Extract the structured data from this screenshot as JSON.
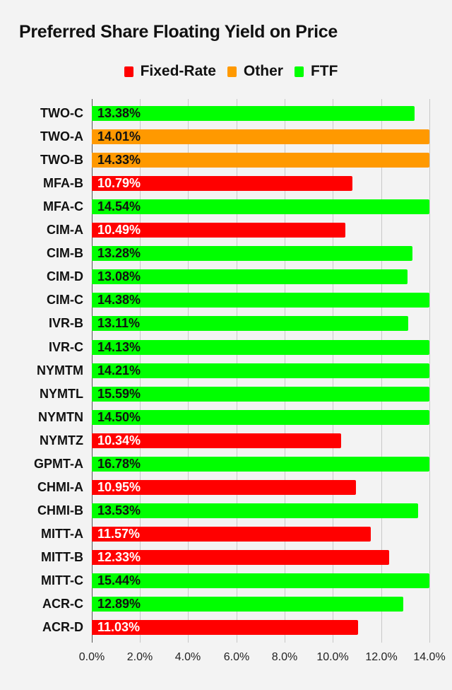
{
  "title": "Preferred Share Floating Yield on Price",
  "legend": [
    {
      "label": "Fixed-Rate",
      "color": "#ff0000"
    },
    {
      "label": "Other",
      "color": "#ff9900"
    },
    {
      "label": "FTF",
      "color": "#00ff00"
    }
  ],
  "x_axis": {
    "ticks": [
      "0.0%",
      "2.0%",
      "4.0%",
      "6.0%",
      "8.0%",
      "10.0%",
      "12.0%",
      "14.0%"
    ]
  },
  "chart_data": {
    "type": "bar",
    "orientation": "horizontal",
    "title": "Preferred Share Floating Yield on Price",
    "xlabel": "",
    "ylabel": "",
    "xlim": [
      0,
      14
    ],
    "grid": true,
    "legend_position": "top",
    "legend": [
      "Fixed-Rate",
      "Other",
      "FTF"
    ],
    "categories": [
      "TWO-C",
      "TWO-A",
      "TWO-B",
      "MFA-B",
      "MFA-C",
      "CIM-A",
      "CIM-B",
      "CIM-D",
      "CIM-C",
      "IVR-B",
      "IVR-C",
      "NYMTM",
      "NYMTL",
      "NYMTN",
      "NYMTZ",
      "GPMT-A",
      "CHMI-A",
      "CHMI-B",
      "MITT-A",
      "MITT-B",
      "MITT-C",
      "ACR-C",
      "ACR-D"
    ],
    "values": [
      13.38,
      14.01,
      14.33,
      10.79,
      14.54,
      10.49,
      13.28,
      13.08,
      14.38,
      13.11,
      14.13,
      14.21,
      15.59,
      14.5,
      10.34,
      16.78,
      10.95,
      13.53,
      11.57,
      12.33,
      15.44,
      12.89,
      11.03
    ],
    "value_labels": [
      "13.38%",
      "14.01%",
      "14.33%",
      "10.79%",
      "14.54%",
      "10.49%",
      "13.28%",
      "13.08%",
      "14.38%",
      "13.11%",
      "14.13%",
      "14.21%",
      "15.59%",
      "14.50%",
      "10.34%",
      "16.78%",
      "10.95%",
      "13.53%",
      "11.57%",
      "12.33%",
      "15.44%",
      "12.89%",
      "11.03%"
    ],
    "groups": [
      "FTF",
      "Other",
      "Other",
      "Fixed-Rate",
      "FTF",
      "Fixed-Rate",
      "FTF",
      "FTF",
      "FTF",
      "FTF",
      "FTF",
      "FTF",
      "FTF",
      "FTF",
      "Fixed-Rate",
      "FTF",
      "Fixed-Rate",
      "FTF",
      "Fixed-Rate",
      "Fixed-Rate",
      "FTF",
      "FTF",
      "Fixed-Rate"
    ]
  },
  "colors": {
    "Fixed-Rate": "#ff0000",
    "Other": "#ff9900",
    "FTF": "#00ff00",
    "label_on_red": "#ffffff",
    "label_on_other": "#111111"
  }
}
